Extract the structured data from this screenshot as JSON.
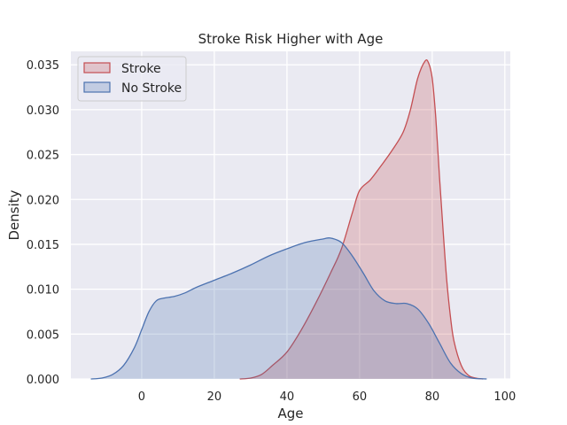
{
  "chart_data": {
    "type": "area",
    "title": "Stroke Risk Higher with Age",
    "xlabel": "Age",
    "ylabel": "Density",
    "xlim": [
      -19.5,
      101.5
    ],
    "ylim": [
      0,
      0.0365
    ],
    "xticks": [
      0,
      20,
      40,
      60,
      80,
      100
    ],
    "yticks": [
      0.0,
      0.005,
      0.01,
      0.015,
      0.02,
      0.025,
      0.03,
      0.035
    ],
    "xtick_labels": [
      "0",
      "20",
      "40",
      "60",
      "80",
      "100"
    ],
    "ytick_labels": [
      "0.000",
      "0.005",
      "0.010",
      "0.015",
      "0.020",
      "0.025",
      "0.030",
      "0.035"
    ],
    "grid": true,
    "legend_position": "top-left",
    "series": [
      {
        "name": "Stroke",
        "color": "#c44e52",
        "points": [
          [
            27,
            0
          ],
          [
            30,
            0.0001
          ],
          [
            33,
            0.0005
          ],
          [
            36,
            0.0015
          ],
          [
            40,
            0.003
          ],
          [
            44,
            0.0055
          ],
          [
            48,
            0.0085
          ],
          [
            52,
            0.0118
          ],
          [
            55,
            0.0145
          ],
          [
            58,
            0.0185
          ],
          [
            60,
            0.021
          ],
          [
            63,
            0.0222
          ],
          [
            66,
            0.0238
          ],
          [
            69,
            0.0255
          ],
          [
            72,
            0.0275
          ],
          [
            74,
            0.03
          ],
          [
            76,
            0.0335
          ],
          [
            78,
            0.0354
          ],
          [
            79,
            0.0352
          ],
          [
            80,
            0.0335
          ],
          [
            81,
            0.029
          ],
          [
            82,
            0.0225
          ],
          [
            83,
            0.0165
          ],
          [
            84,
            0.011
          ],
          [
            85,
            0.007
          ],
          [
            86,
            0.0042
          ],
          [
            88,
            0.0015
          ],
          [
            90,
            0.0004
          ],
          [
            92,
            0.0001
          ],
          [
            94,
            0
          ]
        ]
      },
      {
        "name": "No Stroke",
        "color": "#4c72b0",
        "points": [
          [
            -14,
            0
          ],
          [
            -11,
            0.0001
          ],
          [
            -8,
            0.0005
          ],
          [
            -5,
            0.0015
          ],
          [
            -2,
            0.0035
          ],
          [
            0,
            0.0055
          ],
          [
            2,
            0.0075
          ],
          [
            4,
            0.0087
          ],
          [
            6,
            0.009
          ],
          [
            9,
            0.0092
          ],
          [
            12,
            0.0096
          ],
          [
            15,
            0.0102
          ],
          [
            20,
            0.011
          ],
          [
            25,
            0.0118
          ],
          [
            30,
            0.0127
          ],
          [
            35,
            0.0137
          ],
          [
            40,
            0.0145
          ],
          [
            45,
            0.0152
          ],
          [
            50,
            0.0156
          ],
          [
            52,
            0.0157
          ],
          [
            55,
            0.0152
          ],
          [
            58,
            0.0137
          ],
          [
            61,
            0.0118
          ],
          [
            64,
            0.0098
          ],
          [
            67,
            0.0087
          ],
          [
            70,
            0.0084
          ],
          [
            73,
            0.0084
          ],
          [
            76,
            0.0078
          ],
          [
            79,
            0.0062
          ],
          [
            82,
            0.004
          ],
          [
            85,
            0.0018
          ],
          [
            88,
            0.0006
          ],
          [
            91,
            0.0001
          ],
          [
            95,
            0
          ]
        ]
      }
    ]
  }
}
